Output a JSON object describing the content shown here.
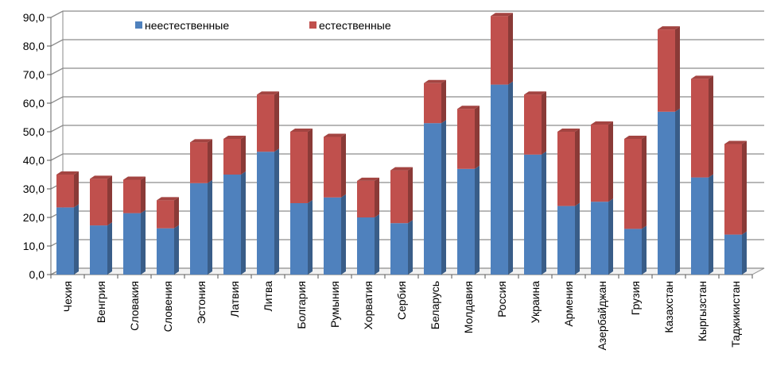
{
  "chart_data": {
    "type": "bar",
    "stacked": true,
    "categories": [
      "Чехия",
      "Венгрия",
      "Словакия",
      "Словения",
      "Эстония",
      "Латвия",
      "Литва",
      "Болгария",
      "Румыния",
      "Хорватия",
      "Сербия",
      "Беларусь",
      "Молдавия",
      "Россия",
      "Украина",
      "Армения",
      "Азербайджан",
      "Грузия",
      "Казахстан",
      "Кыргызстан",
      "Таджикистан"
    ],
    "series": [
      {
        "name": "неестественные",
        "color": "#4F81BD",
        "values": [
          23.5,
          17.2,
          21.5,
          16.2,
          32.0,
          35.0,
          43.0,
          25.0,
          27.0,
          20.0,
          18.0,
          53.0,
          37.0,
          66.5,
          42.0,
          24.0,
          25.5,
          16.0,
          57.0,
          34.0,
          14.0
        ]
      },
      {
        "name": "естественные",
        "color": "#C0504D",
        "values": [
          11.5,
          16.3,
          11.7,
          9.8,
          14.3,
          12.5,
          20.0,
          25.0,
          21.2,
          12.8,
          18.5,
          14.0,
          21.0,
          24.0,
          21.0,
          26.0,
          27.0,
          31.5,
          28.8,
          34.5,
          31.7
        ]
      }
    ],
    "ylim": [
      0,
      90
    ],
    "yticks": [
      "0,0",
      "10,0",
      "20,0",
      "30,0",
      "40,0",
      "50,0",
      "60,0",
      "70,0",
      "80,0",
      "90,0"
    ],
    "grid": true,
    "legend": "top"
  }
}
